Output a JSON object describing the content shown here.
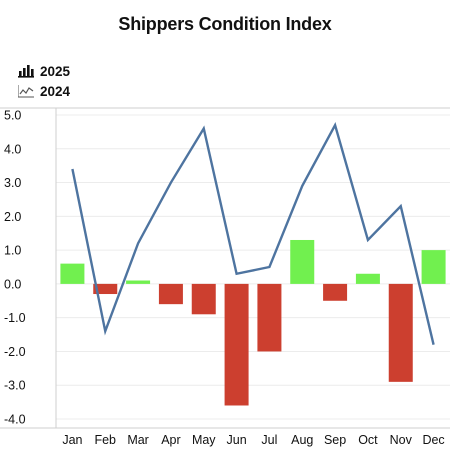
{
  "colors": {
    "positive_bar": "#71f04f",
    "negative_bar": "#cc3f2f",
    "line": "#4e74a0",
    "grid": "#ececec",
    "axis": "#cfcfcf"
  },
  "legend_icons": {
    "bars": "bar-chart-icon",
    "line": "line-chart-icon"
  },
  "chart_data": {
    "type": "bar",
    "title": "Shippers Condition Index",
    "xlabel": "",
    "ylabel": "",
    "categories": [
      "Jan",
      "Feb",
      "Mar",
      "Apr",
      "May",
      "Jun",
      "Jul",
      "Aug",
      "Sep",
      "Oct",
      "Nov",
      "Dec"
    ],
    "series": [
      {
        "name": "2025",
        "type": "bar",
        "values": [
          0.6,
          -0.3,
          0.1,
          -0.6,
          -0.9,
          -3.6,
          -2.0,
          1.3,
          -0.5,
          0.3,
          -2.9,
          1.0
        ]
      },
      {
        "name": "2024",
        "type": "line",
        "values": [
          3.4,
          -1.4,
          1.2,
          3.0,
          4.6,
          0.3,
          0.5,
          2.9,
          4.7,
          1.3,
          2.3,
          -1.8
        ]
      }
    ],
    "ylim": [
      -4.0,
      5.0
    ],
    "yticks": [
      "5.0",
      "4.0",
      "3.0",
      "2.0",
      "1.0",
      "0.0",
      "-1.0",
      "-2.0",
      "-3.0",
      "-4.0"
    ],
    "grid": true,
    "legend_position": "top-left"
  }
}
